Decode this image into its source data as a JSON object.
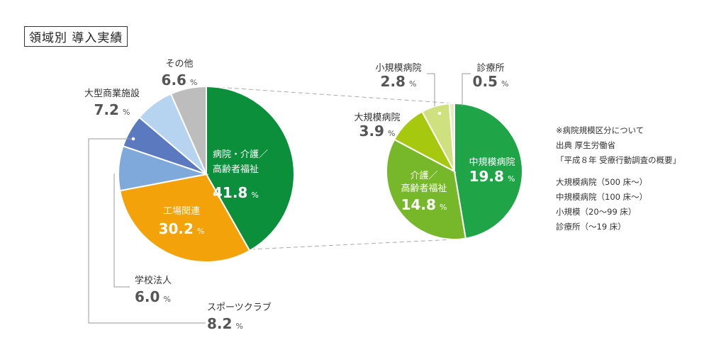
{
  "title": "領域別 導入実績",
  "chart_data": [
    {
      "type": "pie",
      "slices": [
        {
          "label_lines": [
            "病院・介護／",
            "高齢者福祉"
          ],
          "value": 41.8,
          "color": "#0b8f3a"
        },
        {
          "label_lines": [
            "工場関連"
          ],
          "value": 30.2,
          "color": "#f3a20a"
        },
        {
          "label_lines": [
            "スポーツクラブ"
          ],
          "value": 8.2,
          "color": "#7fa9db"
        },
        {
          "label_lines": [
            "学校法人"
          ],
          "value": 6.0,
          "color": "#5b79be"
        },
        {
          "label_lines": [
            "大型商業施設"
          ],
          "value": 7.2,
          "color": "#b6d4ef"
        },
        {
          "label_lines": [
            "その他"
          ],
          "value": 6.6,
          "color": "#bdbdbd"
        }
      ],
      "unit": "%"
    },
    {
      "type": "pie",
      "slices": [
        {
          "label_lines": [
            "中規模病院"
          ],
          "value": 19.8,
          "color": "#1fa548"
        },
        {
          "label_lines": [
            "介護／",
            "高齢者福祉"
          ],
          "value": 14.8,
          "color": "#76b82a"
        },
        {
          "label_lines": [
            "大規模病院"
          ],
          "value": 3.9,
          "color": "#a6c80e"
        },
        {
          "label_lines": [
            "小規模病院"
          ],
          "value": 2.8,
          "color": "#cfe07e"
        },
        {
          "label_lines": [
            "診療所"
          ],
          "value": 0.5,
          "color": "#e4eec4"
        }
      ],
      "unit": "%"
    }
  ],
  "notes": {
    "source_lines": [
      "※病院規模区分について",
      "出典 厚生労働省",
      "「平成８年 受療行動調査の概要」"
    ],
    "size_lines": [
      "大規模病院（500 床〜）",
      "中規模病院（100 床〜）",
      "小規模（20〜99 床）",
      "診療所（〜19 床）"
    ]
  }
}
